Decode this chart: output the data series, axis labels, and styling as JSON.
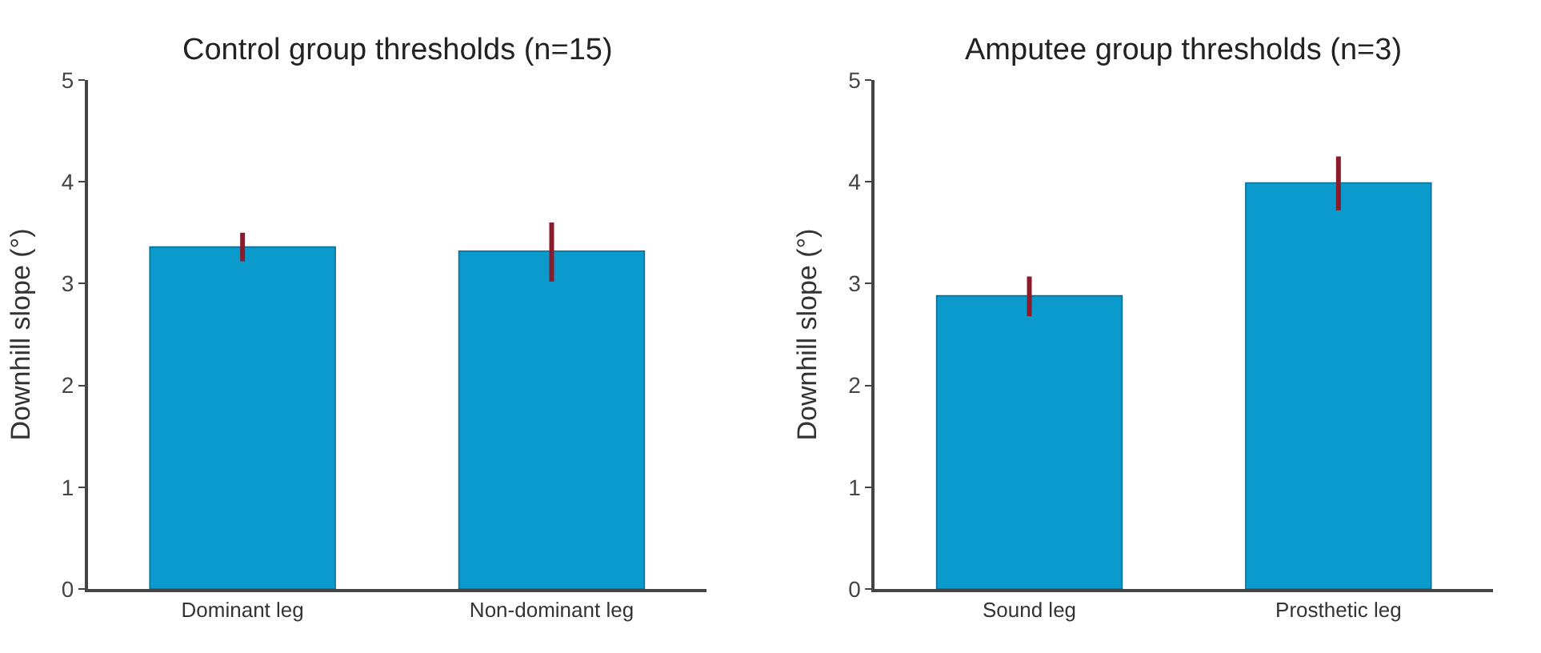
{
  "chart_data": [
    {
      "type": "bar",
      "title": "Control group thresholds (n=15)",
      "ylabel": "Downhill slope (°)",
      "categories": [
        "Dominant leg",
        "Non-dominant leg"
      ],
      "values": [
        3.36,
        3.32
      ],
      "errors": [
        [
          3.22,
          3.5
        ],
        [
          3.02,
          3.6
        ]
      ],
      "color": "#0a9acc",
      "ylim": [
        0,
        5
      ],
      "yticks": [
        0,
        1,
        2,
        3,
        4,
        5
      ]
    },
    {
      "type": "bar",
      "title": "Amputee group thresholds (n=3)",
      "ylabel": "Downhill slope (°)",
      "categories": [
        "Sound leg",
        "Prosthetic leg"
      ],
      "values": [
        2.88,
        3.99
      ],
      "errors": [
        [
          2.68,
          3.07
        ],
        [
          3.72,
          4.25
        ]
      ],
      "color": "#0a9acc",
      "ylim": [
        0,
        5
      ],
      "yticks": [
        0,
        1,
        2,
        3,
        4,
        5
      ]
    }
  ]
}
